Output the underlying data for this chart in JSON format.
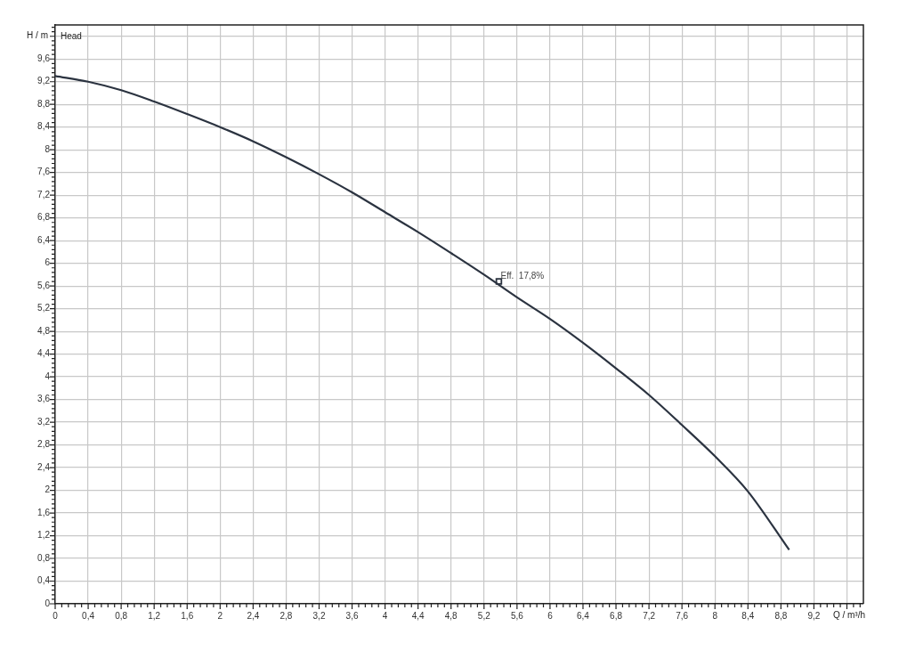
{
  "chart_data": {
    "type": "line",
    "xlabel": "Q / m³/h",
    "ylabel": "H / m",
    "xlim": [
      0,
      9.8
    ],
    "ylim": [
      0,
      10.2
    ],
    "xticks": [
      0,
      {
        "value": 0.4,
        "label": "0,4"
      },
      {
        "value": 0.8,
        "label": "0,8"
      },
      {
        "value": 1.2,
        "label": "1,2"
      },
      {
        "value": 1.6,
        "label": "1,6"
      },
      2,
      {
        "value": 2.4,
        "label": "2,4"
      },
      {
        "value": 2.8,
        "label": "2,8"
      },
      {
        "value": 3.2,
        "label": "3,2"
      },
      {
        "value": 3.6,
        "label": "3,6"
      },
      4,
      {
        "value": 4.4,
        "label": "4,4"
      },
      {
        "value": 4.8,
        "label": "4,8"
      },
      {
        "value": 5.2,
        "label": "5,2"
      },
      {
        "value": 5.6,
        "label": "5,6"
      },
      6,
      {
        "value": 6.4,
        "label": "6,4"
      },
      {
        "value": 6.8,
        "label": "6,8"
      },
      {
        "value": 7.2,
        "label": "7,2"
      },
      {
        "value": 7.6,
        "label": "7,6"
      },
      8,
      {
        "value": 8.4,
        "label": "8,4"
      },
      {
        "value": 8.8,
        "label": "8,8"
      },
      {
        "value": 9.2,
        "label": "9,2"
      },
      {
        "value": 9.6,
        "label": null
      }
    ],
    "yticks": [
      0,
      {
        "value": 0.4,
        "label": "0,4"
      },
      {
        "value": 0.8,
        "label": "0,8"
      },
      {
        "value": 1.2,
        "label": "1,2"
      },
      {
        "value": 1.6,
        "label": "1,6"
      },
      2,
      {
        "value": 2.4,
        "label": "2,4"
      },
      {
        "value": 2.8,
        "label": "2,8"
      },
      {
        "value": 3.2,
        "label": "3,2"
      },
      {
        "value": 3.6,
        "label": "3,6"
      },
      4,
      {
        "value": 4.4,
        "label": "4,4"
      },
      {
        "value": 4.8,
        "label": "4,8"
      },
      {
        "value": 5.2,
        "label": "5,2"
      },
      {
        "value": 5.6,
        "label": "5,6"
      },
      6,
      {
        "value": 6.4,
        "label": "6,4"
      },
      {
        "value": 6.8,
        "label": "6,8"
      },
      {
        "value": 7.2,
        "label": "7,2"
      },
      {
        "value": 7.6,
        "label": "7,6"
      },
      8,
      {
        "value": 8.4,
        "label": "8,4"
      },
      {
        "value": 8.8,
        "label": "8,8"
      },
      {
        "value": 9.2,
        "label": "9,2"
      },
      {
        "value": 9.6,
        "label": "9,6"
      },
      {
        "value": 10,
        "label": null
      }
    ],
    "grid": true,
    "legend": false,
    "series": [
      {
        "color": "#2b3340",
        "marker": "none",
        "x": [
          0,
          0.4,
          0.8,
          1.2,
          1.6,
          2,
          2.4,
          2.8,
          3.2,
          3.6,
          4,
          4.4,
          4.8,
          5.2,
          5.6,
          6,
          6.4,
          6.8,
          7.2,
          7.6,
          8,
          8.4,
          8.9
        ],
        "values": [
          9.3,
          9.2,
          9.05,
          8.85,
          8.63,
          8.4,
          8.15,
          7.87,
          7.57,
          7.25,
          6.9,
          6.55,
          6.18,
          5.8,
          5.4,
          5.02,
          4.6,
          4.15,
          3.68,
          3.15,
          2.6,
          1.98,
          0.95
        ]
      },
      {
        "type": "scatter",
        "color": "#2b3340",
        "marker": "square",
        "x": [
          5.38
        ],
        "values": [
          5.68
        ]
      }
    ],
    "annotations": [
      "Head",
      {
        "text": "Eff.  17,8%",
        "x": 5.38,
        "y": 5.68
      }
    ]
  }
}
